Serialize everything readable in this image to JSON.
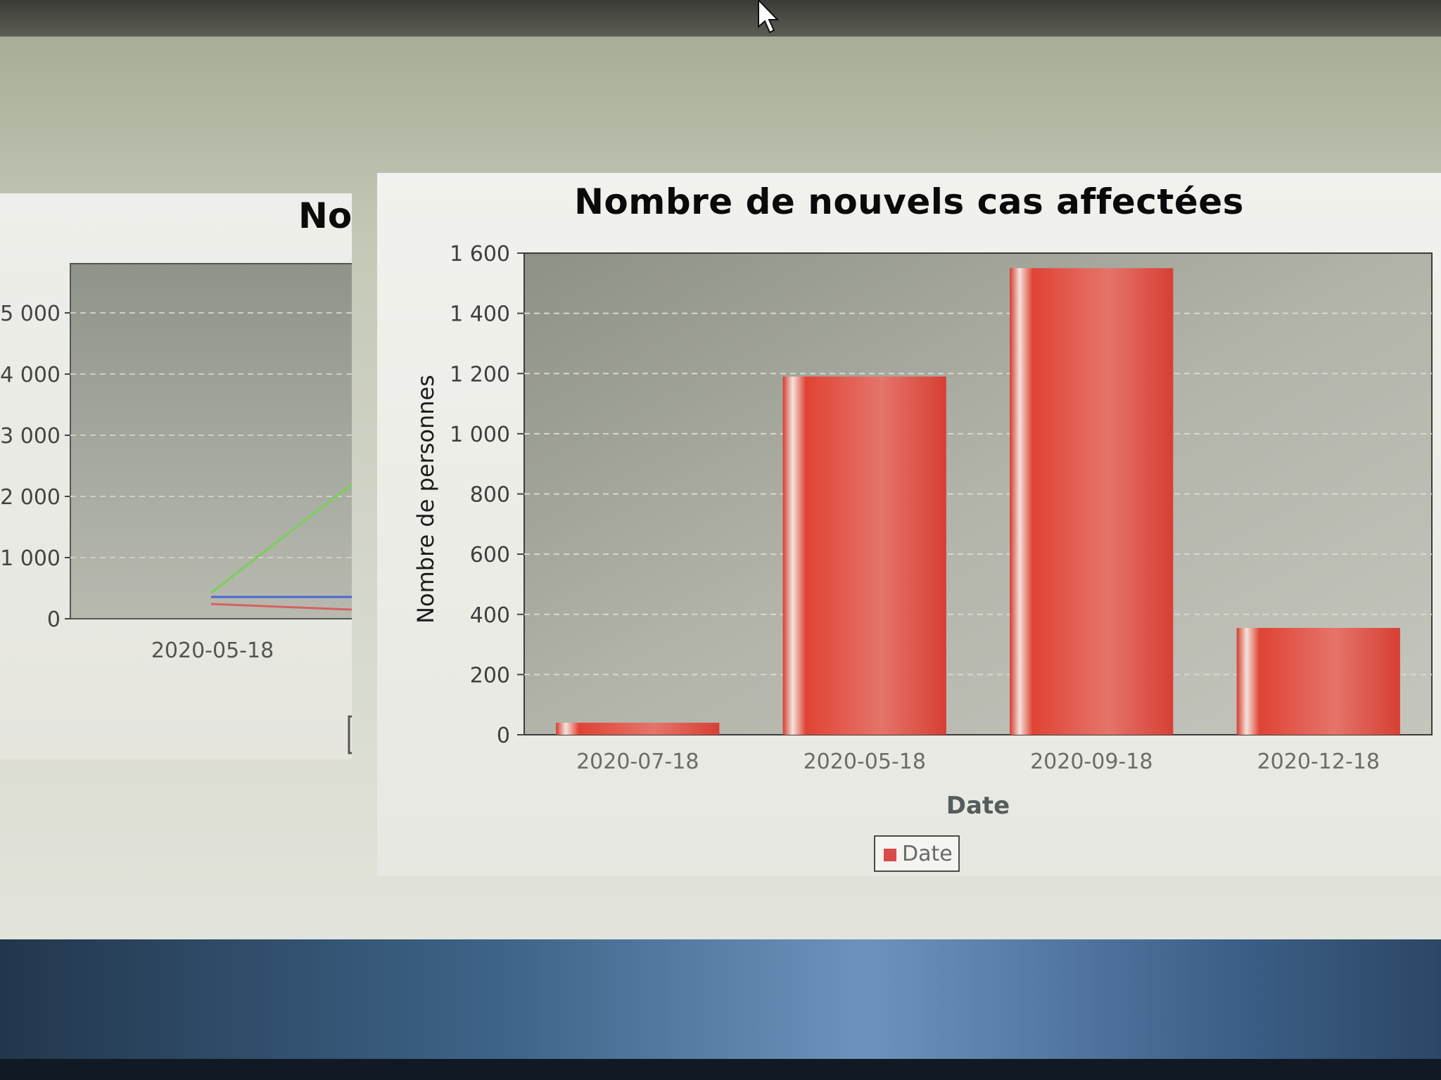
{
  "left_panel": {
    "title_fragment": "No",
    "y_ticks": [
      "0",
      "1 000",
      "2 000",
      "3 000",
      "4 000",
      "5 000"
    ],
    "x_tick": "2020-05-18",
    "series_colors": [
      "#7ad05a",
      "#4a66d8",
      "#d86060"
    ]
  },
  "chart_data": {
    "type": "bar",
    "title": "Nombre de nouvels cas affectées",
    "xlabel": "Date",
    "ylabel": "Nombre de personnes",
    "categories": [
      "2020-07-18",
      "2020-05-18",
      "2020-09-18",
      "2020-12-18"
    ],
    "series": [
      {
        "name": "Date",
        "values": [
          40,
          1190,
          1550,
          355
        ],
        "color": "#d94a48"
      }
    ],
    "y_ticks": [
      "0",
      "200",
      "400",
      "600",
      "800",
      "1 000",
      "1 200",
      "1 400",
      "1 600"
    ],
    "ylim": [
      0,
      1600
    ],
    "grid": true,
    "legend": "bottom-center"
  },
  "legend": {
    "label": "Date"
  }
}
